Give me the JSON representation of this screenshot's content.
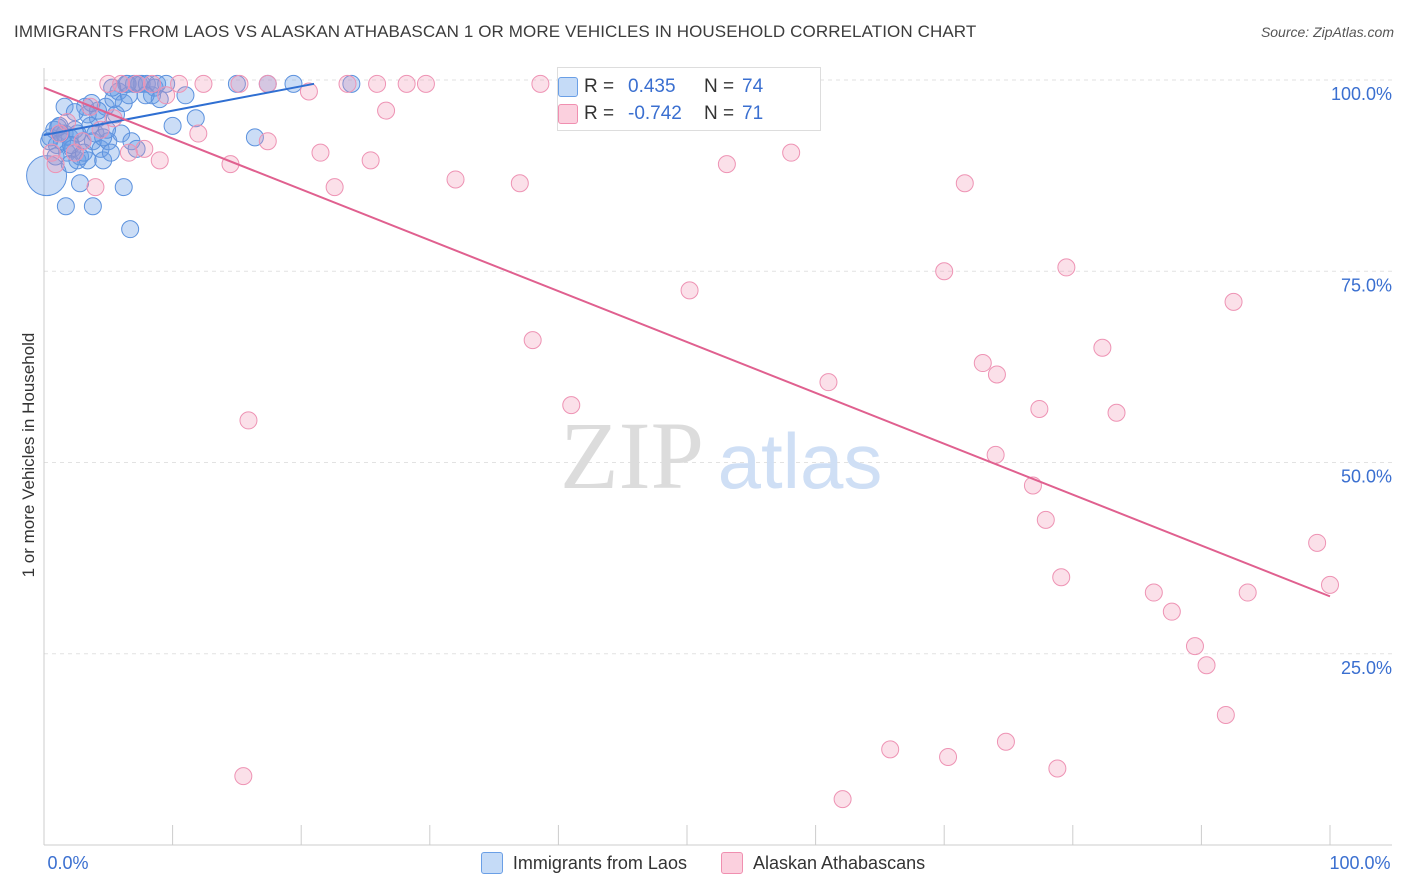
{
  "title": "IMMIGRANTS FROM LAOS VS ALASKAN ATHABASCAN 1 OR MORE VEHICLES IN HOUSEHOLD CORRELATION CHART",
  "source": "Source: ZipAtlas.com",
  "watermark": {
    "zip": "ZIP",
    "atlas": "atlas"
  },
  "stats": [
    {
      "r_label": "R =",
      "r_value": "0.435",
      "n_label": "N =",
      "n_value": "74",
      "color": "#6a9fe6"
    },
    {
      "r_label": "R =",
      "r_value": "-0.742",
      "n_label": "N =",
      "n_value": "71",
      "color": "#f08fb0"
    }
  ],
  "legend": [
    {
      "label": "Immigrants from Laos",
      "color": "#6a9fe6"
    },
    {
      "label": "Alaskan Athabascans",
      "color": "#f08fb0"
    }
  ],
  "chart_data": {
    "type": "scatter",
    "title": "IMMIGRANTS FROM LAOS VS ALASKAN ATHABASCAN 1 OR MORE VEHICLES IN HOUSEHOLD CORRELATION CHART",
    "xlabel": "",
    "ylabel": "1 or more Vehicles in Household",
    "xlim": [
      0,
      100
    ],
    "ylim": [
      0,
      100
    ],
    "x_tick_labels": [
      "0.0%",
      "100.0%"
    ],
    "y_ticks": [
      25,
      50,
      75,
      100
    ],
    "y_tick_labels": [
      "25.0%",
      "50.0%",
      "75.0%",
      "100.0%"
    ],
    "series": [
      {
        "name": "Immigrants from Laos",
        "color": "#6a9fe6",
        "trend": {
          "x": [
            0,
            21
          ],
          "y": [
            92.8,
            99.5
          ]
        },
        "points": [
          {
            "x": 0.2,
            "y": 87.5,
            "big": true
          },
          {
            "x": 0.5,
            "y": 92.5
          },
          {
            "x": 0.8,
            "y": 93.5
          },
          {
            "x": 1.0,
            "y": 91.5
          },
          {
            "x": 1.2,
            "y": 94.0
          },
          {
            "x": 1.4,
            "y": 92.0
          },
          {
            "x": 1.6,
            "y": 93.0
          },
          {
            "x": 1.8,
            "y": 90.5
          },
          {
            "x": 2.0,
            "y": 92.5
          },
          {
            "x": 2.2,
            "y": 91.0
          },
          {
            "x": 2.4,
            "y": 93.5
          },
          {
            "x": 2.6,
            "y": 89.5
          },
          {
            "x": 2.8,
            "y": 90.0
          },
          {
            "x": 3.0,
            "y": 92.0
          },
          {
            "x": 3.2,
            "y": 96.5
          },
          {
            "x": 3.4,
            "y": 89.5
          },
          {
            "x": 3.6,
            "y": 94.0
          },
          {
            "x": 3.8,
            "y": 92.0
          },
          {
            "x": 4.0,
            "y": 93.0
          },
          {
            "x": 4.2,
            "y": 95.0
          },
          {
            "x": 4.4,
            "y": 91.0
          },
          {
            "x": 4.6,
            "y": 89.5
          },
          {
            "x": 4.8,
            "y": 96.5
          },
          {
            "x": 5.0,
            "y": 92.0
          },
          {
            "x": 5.2,
            "y": 90.5
          },
          {
            "x": 5.4,
            "y": 97.5
          },
          {
            "x": 5.6,
            "y": 95.5
          },
          {
            "x": 5.8,
            "y": 98.5
          },
          {
            "x": 6.0,
            "y": 93.0
          },
          {
            "x": 6.2,
            "y": 97.0
          },
          {
            "x": 6.4,
            "y": 99.5
          },
          {
            "x": 6.6,
            "y": 98.0
          },
          {
            "x": 6.8,
            "y": 92.0
          },
          {
            "x": 7.0,
            "y": 99.5
          },
          {
            "x": 7.2,
            "y": 91.0
          },
          {
            "x": 7.4,
            "y": 99.5
          },
          {
            "x": 7.6,
            "y": 99.5
          },
          {
            "x": 8.0,
            "y": 99.5
          },
          {
            "x": 8.4,
            "y": 98.0
          },
          {
            "x": 8.6,
            "y": 99.0
          },
          {
            "x": 8.8,
            "y": 99.5
          },
          {
            "x": 9.0,
            "y": 97.5
          },
          {
            "x": 1.6,
            "y": 96.5
          },
          {
            "x": 2.0,
            "y": 89.0
          },
          {
            "x": 2.6,
            "y": 93.0
          },
          {
            "x": 3.4,
            "y": 95.5
          },
          {
            "x": 4.2,
            "y": 96.0
          },
          {
            "x": 4.6,
            "y": 92.5
          },
          {
            "x": 1.7,
            "y": 83.5
          },
          {
            "x": 2.8,
            "y": 86.5
          },
          {
            "x": 3.8,
            "y": 83.5
          },
          {
            "x": 6.2,
            "y": 86.0
          },
          {
            "x": 6.7,
            "y": 80.5
          },
          {
            "x": 10.0,
            "y": 94.0
          },
          {
            "x": 11.0,
            "y": 98.0
          },
          {
            "x": 11.8,
            "y": 95.0
          },
          {
            "x": 15.0,
            "y": 99.5
          },
          {
            "x": 16.4,
            "y": 92.5
          },
          {
            "x": 17.4,
            "y": 99.5
          },
          {
            "x": 19.4,
            "y": 99.5
          },
          {
            "x": 23.9,
            "y": 99.5
          },
          {
            "x": 0.4,
            "y": 92.0
          },
          {
            "x": 0.9,
            "y": 90.0
          },
          {
            "x": 1.3,
            "y": 93.0
          },
          {
            "x": 2.1,
            "y": 91.5
          },
          {
            "x": 3.1,
            "y": 90.5
          },
          {
            "x": 3.7,
            "y": 97.0
          },
          {
            "x": 4.9,
            "y": 93.5
          },
          {
            "x": 5.3,
            "y": 99.0
          },
          {
            "x": 6.5,
            "y": 99.5
          },
          {
            "x": 7.9,
            "y": 98.0
          },
          {
            "x": 9.5,
            "y": 99.5
          },
          {
            "x": 1.1,
            "y": 93.8
          },
          {
            "x": 2.4,
            "y": 95.8
          }
        ]
      },
      {
        "name": "Alaskan Athabascans",
        "color": "#f08fb0",
        "trend": {
          "x": [
            0,
            100
          ],
          "y": [
            99.0,
            32.5
          ]
        },
        "points": [
          {
            "x": 0.6,
            "y": 90.5
          },
          {
            "x": 1.2,
            "y": 93.0
          },
          {
            "x": 1.8,
            "y": 94.5
          },
          {
            "x": 2.4,
            "y": 90.5
          },
          {
            "x": 3.0,
            "y": 92.0
          },
          {
            "x": 3.6,
            "y": 96.5
          },
          {
            "x": 4.0,
            "y": 86.0
          },
          {
            "x": 4.4,
            "y": 93.5
          },
          {
            "x": 5.0,
            "y": 99.5
          },
          {
            "x": 5.4,
            "y": 95.0
          },
          {
            "x": 6.0,
            "y": 99.5
          },
          {
            "x": 6.6,
            "y": 90.5
          },
          {
            "x": 7.2,
            "y": 99.5
          },
          {
            "x": 7.8,
            "y": 91.0
          },
          {
            "x": 8.4,
            "y": 99.5
          },
          {
            "x": 9.0,
            "y": 89.5
          },
          {
            "x": 9.5,
            "y": 98.0
          },
          {
            "x": 10.5,
            "y": 99.5
          },
          {
            "x": 12.0,
            "y": 93.0
          },
          {
            "x": 12.4,
            "y": 99.5
          },
          {
            "x": 14.5,
            "y": 89.0
          },
          {
            "x": 15.2,
            "y": 99.5
          },
          {
            "x": 17.4,
            "y": 99.5
          },
          {
            "x": 17.4,
            "y": 92.0
          },
          {
            "x": 20.6,
            "y": 98.5
          },
          {
            "x": 21.5,
            "y": 90.5
          },
          {
            "x": 22.6,
            "y": 86.0
          },
          {
            "x": 23.6,
            "y": 99.5
          },
          {
            "x": 25.9,
            "y": 99.5
          },
          {
            "x": 25.4,
            "y": 89.5
          },
          {
            "x": 26.6,
            "y": 96.0
          },
          {
            "x": 28.2,
            "y": 99.5
          },
          {
            "x": 29.7,
            "y": 99.5
          },
          {
            "x": 32.0,
            "y": 87.0
          },
          {
            "x": 37.0,
            "y": 86.5
          },
          {
            "x": 38.6,
            "y": 99.5
          },
          {
            "x": 38.0,
            "y": 66.0
          },
          {
            "x": 41.0,
            "y": 57.5
          },
          {
            "x": 50.2,
            "y": 72.5
          },
          {
            "x": 53.1,
            "y": 89.0
          },
          {
            "x": 58.1,
            "y": 90.5
          },
          {
            "x": 61.0,
            "y": 60.5
          },
          {
            "x": 70.0,
            "y": 75.0
          },
          {
            "x": 71.6,
            "y": 86.5
          },
          {
            "x": 73.0,
            "y": 63.0
          },
          {
            "x": 74.1,
            "y": 61.5
          },
          {
            "x": 74.0,
            "y": 51.0
          },
          {
            "x": 76.9,
            "y": 47.0
          },
          {
            "x": 77.4,
            "y": 57.0
          },
          {
            "x": 77.9,
            "y": 42.5
          },
          {
            "x": 79.1,
            "y": 35.0
          },
          {
            "x": 79.5,
            "y": 75.5
          },
          {
            "x": 82.3,
            "y": 65.0
          },
          {
            "x": 83.4,
            "y": 56.5
          },
          {
            "x": 86.3,
            "y": 33.0
          },
          {
            "x": 87.7,
            "y": 30.5
          },
          {
            "x": 89.5,
            "y": 26.0
          },
          {
            "x": 90.4,
            "y": 23.5
          },
          {
            "x": 91.9,
            "y": 17.0
          },
          {
            "x": 92.5,
            "y": 71.0
          },
          {
            "x": 93.6,
            "y": 33.0
          },
          {
            "x": 99.0,
            "y": 39.5
          },
          {
            "x": 100.0,
            "y": 34.0
          },
          {
            "x": 15.9,
            "y": 55.5
          },
          {
            "x": 15.5,
            "y": 9.0
          },
          {
            "x": 62.1,
            "y": 6.0
          },
          {
            "x": 65.8,
            "y": 12.5
          },
          {
            "x": 70.3,
            "y": 11.5
          },
          {
            "x": 74.8,
            "y": 13.5
          },
          {
            "x": 78.8,
            "y": 10.0
          },
          {
            "x": 0.9,
            "y": 89.0
          }
        ]
      }
    ]
  }
}
